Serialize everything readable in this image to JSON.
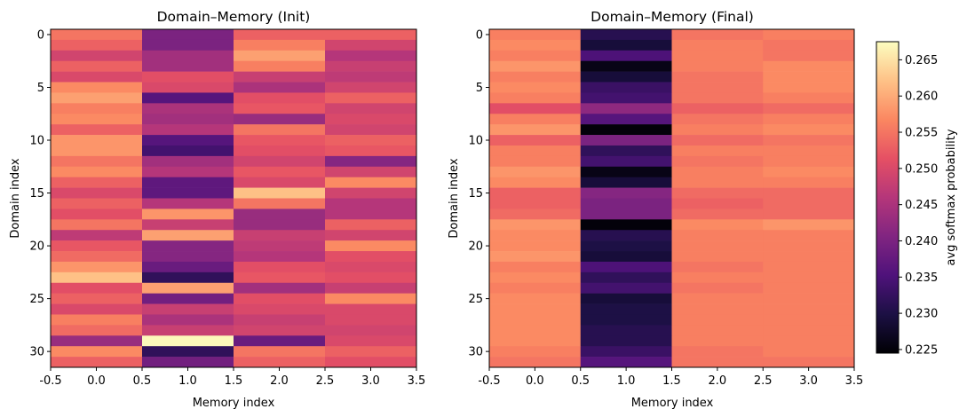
{
  "chart_data": [
    {
      "type": "heatmap",
      "title": "Domain–Memory (Init)",
      "xlabel": "Memory index",
      "ylabel": "Domain index",
      "xlim": [
        -0.5,
        3.5
      ],
      "ylim": [
        31.5,
        -0.5
      ],
      "xticks": [
        "-0.5",
        "0.0",
        "0.5",
        "1.0",
        "1.5",
        "2.0",
        "2.5",
        "3.0",
        "3.5"
      ],
      "yticks": [
        "0",
        "5",
        "10",
        "15",
        "20",
        "25",
        "30"
      ],
      "colormap": "magma",
      "values": [
        [
          0.255,
          0.24,
          0.253,
          0.253
        ],
        [
          0.253,
          0.24,
          0.256,
          0.249
        ],
        [
          0.249,
          0.244,
          0.259,
          0.246
        ],
        [
          0.253,
          0.244,
          0.256,
          0.248
        ],
        [
          0.25,
          0.251,
          0.248,
          0.247
        ],
        [
          0.257,
          0.25,
          0.245,
          0.249
        ],
        [
          0.259,
          0.236,
          0.251,
          0.253
        ],
        [
          0.256,
          0.245,
          0.252,
          0.249
        ],
        [
          0.257,
          0.244,
          0.243,
          0.25
        ],
        [
          0.253,
          0.246,
          0.255,
          0.249
        ],
        [
          0.258,
          0.236,
          0.252,
          0.253
        ],
        [
          0.258,
          0.234,
          0.251,
          0.252
        ],
        [
          0.255,
          0.244,
          0.249,
          0.241
        ],
        [
          0.257,
          0.246,
          0.252,
          0.249
        ],
        [
          0.253,
          0.237,
          0.25,
          0.257
        ],
        [
          0.25,
          0.237,
          0.262,
          0.249
        ],
        [
          0.253,
          0.246,
          0.255,
          0.246
        ],
        [
          0.251,
          0.258,
          0.243,
          0.246
        ],
        [
          0.255,
          0.248,
          0.243,
          0.253
        ],
        [
          0.247,
          0.259,
          0.248,
          0.249
        ],
        [
          0.252,
          0.241,
          0.247,
          0.257
        ],
        [
          0.254,
          0.241,
          0.246,
          0.251
        ],
        [
          0.258,
          0.238,
          0.251,
          0.25
        ],
        [
          0.262,
          0.232,
          0.252,
          0.251
        ],
        [
          0.251,
          0.259,
          0.244,
          0.248
        ],
        [
          0.253,
          0.239,
          0.251,
          0.257
        ],
        [
          0.25,
          0.248,
          0.25,
          0.25
        ],
        [
          0.256,
          0.245,
          0.248,
          0.25
        ],
        [
          0.254,
          0.248,
          0.249,
          0.249
        ],
        [
          0.243,
          0.267,
          0.238,
          0.25
        ],
        [
          0.257,
          0.232,
          0.255,
          0.253
        ],
        [
          0.253,
          0.239,
          0.253,
          0.251
        ]
      ]
    },
    {
      "type": "heatmap",
      "title": "Domain–Memory (Final)",
      "xlabel": "Memory index",
      "ylabel": "Domain index",
      "xlim": [
        -0.5,
        3.5
      ],
      "ylim": [
        31.5,
        -0.5
      ],
      "xticks": [
        "-0.5",
        "0.0",
        "0.5",
        "1.0",
        "1.5",
        "2.0",
        "2.5",
        "3.0",
        "3.5"
      ],
      "yticks": [
        "0",
        "5",
        "10",
        "15",
        "20",
        "25",
        "30"
      ],
      "colormap": "magma",
      "values": [
        [
          0.256,
          0.231,
          0.255,
          0.256
        ],
        [
          0.257,
          0.229,
          0.256,
          0.255
        ],
        [
          0.256,
          0.235,
          0.256,
          0.255
        ],
        [
          0.258,
          0.226,
          0.256,
          0.257
        ],
        [
          0.256,
          0.229,
          0.255,
          0.257
        ],
        [
          0.257,
          0.233,
          0.255,
          0.257
        ],
        [
          0.256,
          0.234,
          0.255,
          0.256
        ],
        [
          0.251,
          0.242,
          0.253,
          0.254
        ],
        [
          0.256,
          0.236,
          0.255,
          0.256
        ],
        [
          0.258,
          0.225,
          0.256,
          0.257
        ],
        [
          0.253,
          0.24,
          0.254,
          0.255
        ],
        [
          0.256,
          0.232,
          0.256,
          0.256
        ],
        [
          0.256,
          0.234,
          0.255,
          0.256
        ],
        [
          0.258,
          0.226,
          0.256,
          0.257
        ],
        [
          0.257,
          0.229,
          0.256,
          0.256
        ],
        [
          0.253,
          0.241,
          0.254,
          0.254
        ],
        [
          0.253,
          0.24,
          0.253,
          0.254
        ],
        [
          0.254,
          0.24,
          0.254,
          0.254
        ],
        [
          0.258,
          0.225,
          0.257,
          0.258
        ],
        [
          0.257,
          0.231,
          0.256,
          0.256
        ],
        [
          0.257,
          0.23,
          0.256,
          0.256
        ],
        [
          0.258,
          0.229,
          0.256,
          0.256
        ],
        [
          0.256,
          0.235,
          0.255,
          0.256
        ],
        [
          0.257,
          0.232,
          0.256,
          0.256
        ],
        [
          0.256,
          0.234,
          0.255,
          0.256
        ],
        [
          0.257,
          0.229,
          0.256,
          0.256
        ],
        [
          0.257,
          0.23,
          0.256,
          0.256
        ],
        [
          0.257,
          0.23,
          0.256,
          0.256
        ],
        [
          0.257,
          0.231,
          0.256,
          0.256
        ],
        [
          0.257,
          0.231,
          0.256,
          0.256
        ],
        [
          0.256,
          0.233,
          0.255,
          0.256
        ],
        [
          0.255,
          0.236,
          0.255,
          0.255
        ]
      ]
    }
  ],
  "colorbar": {
    "label": "avg softmax probability",
    "vmin": 0.2245,
    "vmax": 0.2675,
    "ticks": [
      "0.225",
      "0.230",
      "0.235",
      "0.240",
      "0.245",
      "0.250",
      "0.255",
      "0.260",
      "0.265"
    ]
  }
}
